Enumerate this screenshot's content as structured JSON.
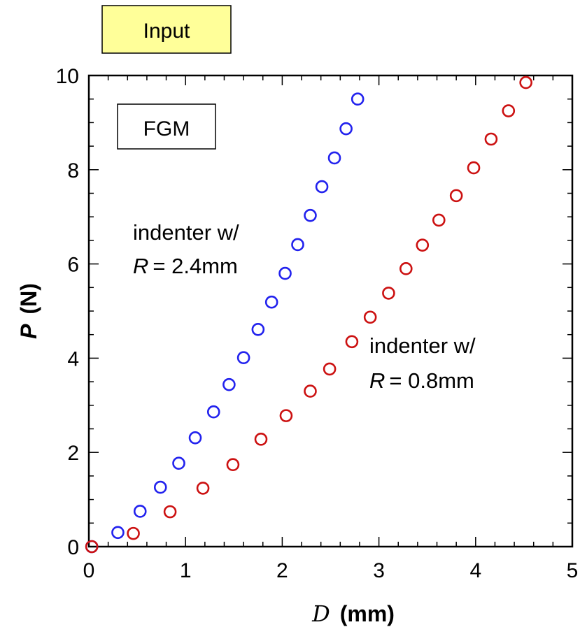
{
  "input_badge": {
    "label": "Input",
    "color": "#ffff99"
  },
  "chart_data": {
    "type": "scatter",
    "xlabel": {
      "var": "D",
      "unit": "(mm)"
    },
    "ylabel": {
      "var": "P",
      "unit": "(N)"
    },
    "xlim": [
      0,
      5
    ],
    "ylim": [
      0,
      10
    ],
    "xticks": [
      0,
      1,
      2,
      3,
      4,
      5
    ],
    "yticks": [
      0,
      2,
      4,
      6,
      8,
      10
    ],
    "grid": false,
    "legend_box": "FGM",
    "series": [
      {
        "color": "#2222ee",
        "marker": "circle-open",
        "label_line1": "indenter w/",
        "label_var": "R",
        "label_value": "= 2.4mm",
        "points": [
          [
            0.03,
            0.0
          ],
          [
            0.3,
            0.3
          ],
          [
            0.53,
            0.75
          ],
          [
            0.74,
            1.26
          ],
          [
            0.93,
            1.77
          ],
          [
            1.1,
            2.31
          ],
          [
            1.29,
            2.86
          ],
          [
            1.45,
            3.44
          ],
          [
            1.6,
            4.01
          ],
          [
            1.75,
            4.61
          ],
          [
            1.89,
            5.19
          ],
          [
            2.03,
            5.8
          ],
          [
            2.16,
            6.41
          ],
          [
            2.29,
            7.03
          ],
          [
            2.41,
            7.64
          ],
          [
            2.54,
            8.25
          ],
          [
            2.66,
            8.87
          ],
          [
            2.78,
            9.5
          ]
        ]
      },
      {
        "color": "#cc1111",
        "marker": "circle-open",
        "label_line1": "indenter w/",
        "label_var": "R",
        "label_value": "= 0.8mm",
        "points": [
          [
            0.03,
            0.0
          ],
          [
            0.46,
            0.28
          ],
          [
            0.84,
            0.74
          ],
          [
            1.18,
            1.24
          ],
          [
            1.49,
            1.74
          ],
          [
            1.78,
            2.28
          ],
          [
            2.04,
            2.78
          ],
          [
            2.29,
            3.3
          ],
          [
            2.49,
            3.77
          ],
          [
            2.72,
            4.35
          ],
          [
            2.91,
            4.87
          ],
          [
            3.1,
            5.38
          ],
          [
            3.28,
            5.9
          ],
          [
            3.45,
            6.4
          ],
          [
            3.62,
            6.93
          ],
          [
            3.8,
            7.45
          ],
          [
            3.98,
            8.04
          ],
          [
            4.16,
            8.65
          ],
          [
            4.34,
            9.25
          ],
          [
            4.52,
            9.85
          ]
        ]
      }
    ]
  }
}
